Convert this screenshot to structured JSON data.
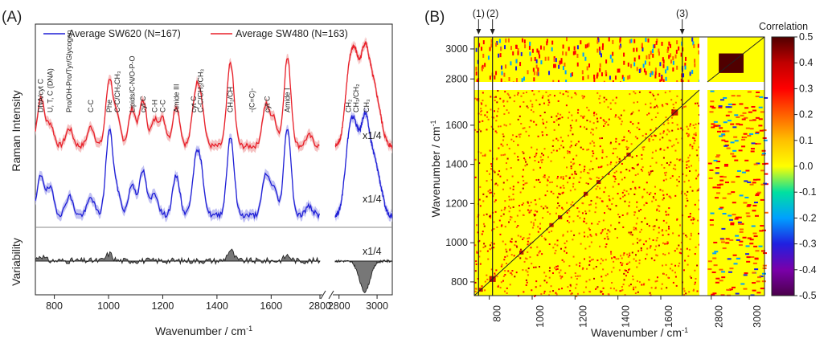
{
  "chart_data": [
    {
      "type": "line",
      "panel_label": "(A)",
      "xlabel": "Wavenumber / cm",
      "xlabel_sup": "-1",
      "ylabel_top": "Raman Intensity",
      "ylabel_bottom": "Variability",
      "x_ticks": [
        "800",
        "1000",
        "1200",
        "1400",
        "1600",
        "2800",
        "2800",
        "3000"
      ],
      "x_ranges": [
        [
          730,
          1780
        ],
        [
          2780,
          3080
        ]
      ],
      "legend": [
        {
          "label": "Average SW620 (N=167)",
          "color": "#1f1fd6"
        },
        {
          "label": "Average SW480 (N=163)",
          "color": "#e8202a"
        }
      ],
      "scale_notes": [
        "x1/4",
        "x1/4",
        "x1/4"
      ],
      "series": [
        {
          "name": "Average SW480 (N=163)",
          "color": "#e8202a",
          "fill": "#f3b3b3",
          "peaks": [
            [
              750,
              0.55
            ],
            [
              785,
              0.25
            ],
            [
              855,
              0.2
            ],
            [
              935,
              0.22
            ],
            [
              1003,
              0.75
            ],
            [
              1032,
              0.3
            ],
            [
              1087,
              0.42
            ],
            [
              1127,
              0.52
            ],
            [
              1170,
              0.28
            ],
            [
              1200,
              0.3
            ],
            [
              1250,
              0.46
            ],
            [
              1320,
              0.5
            ],
            [
              1340,
              0.48
            ],
            [
              1450,
              0.95
            ],
            [
              1580,
              0.45
            ],
            [
              1610,
              0.3
            ],
            [
              1660,
              1.0
            ],
            [
              1740,
              0.12
            ]
          ],
          "peaks_high": [
            [
              2850,
              0.65
            ],
            [
              2885,
              0.85
            ],
            [
              2935,
              1.0
            ],
            [
              2975,
              0.55
            ],
            [
              3010,
              0.3
            ]
          ]
        },
        {
          "name": "Average SW620 (N=167)",
          "color": "#1f1fd6",
          "fill": "#b3b3f0",
          "peaks": [
            [
              750,
              0.45
            ],
            [
              785,
              0.3
            ],
            [
              855,
              0.22
            ],
            [
              935,
              0.2
            ],
            [
              1003,
              0.95
            ],
            [
              1032,
              0.25
            ],
            [
              1087,
              0.35
            ],
            [
              1127,
              0.5
            ],
            [
              1170,
              0.25
            ],
            [
              1250,
              0.45
            ],
            [
              1320,
              0.5
            ],
            [
              1340,
              0.48
            ],
            [
              1450,
              0.9
            ],
            [
              1580,
              0.45
            ],
            [
              1610,
              0.3
            ],
            [
              1660,
              1.0
            ],
            [
              1740,
              0.1
            ]
          ],
          "peaks_high": [
            [
              2850,
              0.7
            ],
            [
              2885,
              0.8
            ],
            [
              2935,
              1.0
            ],
            [
              2975,
              0.5
            ],
            [
              3010,
              0.3
            ]
          ]
        }
      ],
      "peak_labels": [
        {
          "x": 750,
          "text": "DNA/cyt C",
          "series": "Average SW480 (N=163)"
        },
        {
          "x": 785,
          "text": "U, T, C (DNA)",
          "series": "Average SW480 (N=163)"
        },
        {
          "x": 855,
          "text": "Pro/OH-Pro/Tyr/Glycogen",
          "series": "Average SW480 (N=163)"
        },
        {
          "x": 935,
          "text": "C-C",
          "series": "Average SW480 (N=163)"
        },
        {
          "x": 1003,
          "text": "Phe",
          "series": "Average SW480 (N=163)"
        },
        {
          "x": 1032,
          "text": "C-C/CH₂CH₃",
          "series": "Average SW480 (N=163)"
        },
        {
          "x": 1087,
          "text": "Lipids/C-N/O-P-O",
          "series": "Average SW480 (N=163)"
        },
        {
          "x": 1127,
          "text": "cyt C",
          "series": "Average SW480 (N=163)"
        },
        {
          "x": 1170,
          "text": "C-H",
          "series": "Average SW480 (N=163)"
        },
        {
          "x": 1200,
          "text": "C-C",
          "series": "Average SW480 (N=163)"
        },
        {
          "x": 1250,
          "text": "Amide III",
          "series": "Average SW480 (N=163)"
        },
        {
          "x": 1315,
          "text": "cyt C",
          "series": "Average SW480 (N=163)"
        },
        {
          "x": 1340,
          "text": "C-C/CH₂/CH₃",
          "series": "Average SW480 (N=163)"
        },
        {
          "x": 1450,
          "text": "CH₂/CH",
          "series": "Average SW480 (N=163)"
        },
        {
          "x": 1530,
          "text": "-(C=C)-",
          "series": "Average SW480 (N=163)"
        },
        {
          "x": 1585,
          "text": "cyt C",
          "series": "Average SW480 (N=163)"
        },
        {
          "x": 1660,
          "text": "Amide I",
          "series": "Average SW480 (N=163)"
        },
        {
          "x": 2850,
          "text": "CH₂",
          "series": "Average SW480 (N=163)"
        },
        {
          "x": 2890,
          "text": "CH₃/CH₂",
          "series": "Average SW480 (N=163)"
        },
        {
          "x": 2945,
          "text": "CH₃",
          "series": "Average SW480 (N=163)"
        }
      ],
      "variability": {
        "fill": "#777777",
        "peaks": [
          [
            750,
            0.3
          ],
          [
            1003,
            0.4
          ],
          [
            1450,
            0.6
          ],
          [
            1660,
            0.3
          ]
        ],
        "peaks_high": [
          [
            2935,
            -1.0
          ]
        ]
      }
    },
    {
      "type": "heatmap",
      "panel_label": "(B)",
      "xlabel": "Wavenumber / cm",
      "xlabel_sup": "-1",
      "ylabel": "Wavenumber / cm",
      "ylabel_sup": "-1",
      "x_ticks": [
        "800",
        "1000",
        "1200",
        "1400",
        "1600",
        "2800",
        "3000"
      ],
      "y_ticks": [
        "3000",
        "2800",
        "1600",
        "1400",
        "1200",
        "1000",
        "800"
      ],
      "x_ranges": [
        [
          730,
          1780
        ],
        [
          2780,
          3080
        ]
      ],
      "y_ranges": [
        [
          730,
          1780
        ],
        [
          2780,
          3080
        ]
      ],
      "background_value": 0.0,
      "colorbar": {
        "title": "Correlation",
        "range": [
          -0.5,
          0.5
        ],
        "ticks": [
          "0.5",
          "0.4",
          "0.3",
          "0.2",
          "0.1",
          "0.0",
          "-0.1",
          "-0.2",
          "-0.3",
          "-0.4",
          "-0.5"
        ],
        "colors": [
          "#4b004b",
          "#7a00aa",
          "#2020e0",
          "#00a0ff",
          "#00e0a0",
          "#ffff00",
          "#ffc000",
          "#ff6000",
          "#ff0000",
          "#c00000",
          "#500000"
        ]
      },
      "markers": [
        {
          "label": "(1)",
          "x": 750
        },
        {
          "label": "(2)",
          "x": 815
        },
        {
          "label": "(3)",
          "x": 1700
        }
      ],
      "diagonal_blocks": [
        [
          750,
          770
        ],
        [
          800,
          830
        ],
        [
          940,
          960
        ],
        [
          1080,
          1100
        ],
        [
          1120,
          1140
        ],
        [
          1240,
          1260
        ],
        [
          1300,
          1320
        ],
        [
          1440,
          1460
        ],
        [
          1650,
          1680
        ],
        [
          2840,
          2960
        ]
      ]
    }
  ]
}
